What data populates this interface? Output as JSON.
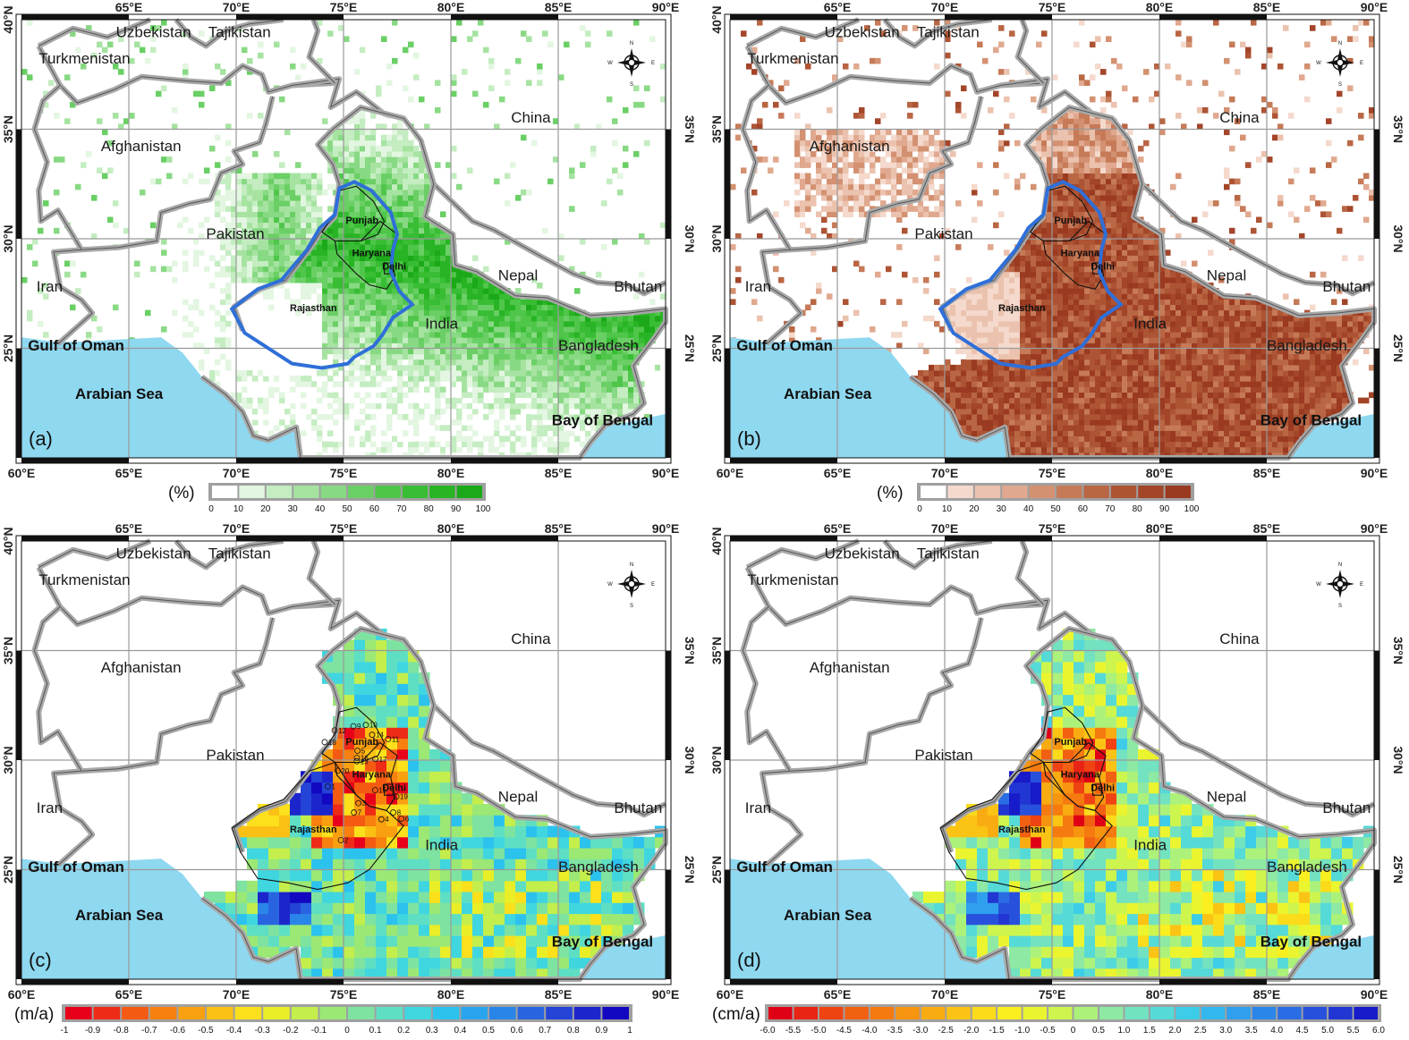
{
  "axes": {
    "lon_ticks": [
      "60°E",
      "65°E",
      "70°E",
      "75°E",
      "80°E",
      "85°E",
      "90°E"
    ],
    "lat_ticks": [
      "25°N",
      "30°N",
      "35°N",
      "40°N"
    ],
    "lon_range": [
      60,
      90
    ],
    "lat_range": [
      20,
      40
    ]
  },
  "places": {
    "uzbekistan": "Uzbekistan",
    "tajikistan": "Tajikistan",
    "turkmenistan": "Turkmenistan",
    "afghanistan": "Afghanistan",
    "china": "China",
    "pakistan": "Pakistan",
    "iran": "Iran",
    "nepal": "Nepal",
    "bhutan": "Bhutan",
    "india": "India",
    "bangladesh": "Bangladesh",
    "gulf_of_oman": "Gulf of Oman",
    "arabian_sea": "Arabian Sea",
    "bay_of_bengal": "Bay of Bengal"
  },
  "states": {
    "punjab": "Punjab",
    "haryana": "Haryana",
    "delhi": "Delhi",
    "rajasthan": "Rajasthan"
  },
  "compass": {
    "n": "N",
    "s": "S",
    "e": "E",
    "w": "W"
  },
  "panels": [
    {
      "id": "a",
      "label": "(a)",
      "legend_unit": "(%)",
      "legend_ticks": [
        "0",
        "10",
        "20",
        "30",
        "40",
        "50",
        "60",
        "70",
        "80",
        "90",
        "100"
      ],
      "colors": {
        "water": "#8ed8f0",
        "land": "#ffffff",
        "fill": "#2ebd2e",
        "outline": "#2f6fd8"
      }
    },
    {
      "id": "b",
      "label": "(b)",
      "legend_unit": "(%)",
      "legend_ticks": [
        "0",
        "10",
        "20",
        "30",
        "40",
        "50",
        "60",
        "70",
        "80",
        "90",
        "100"
      ],
      "colors": {
        "water": "#8ed8f0",
        "land": "#ffffff",
        "fill": "#a8452a",
        "outline": "#2f6fd8"
      }
    },
    {
      "id": "c",
      "label": "(c)",
      "legend_unit": "(m/a)",
      "legend_ticks": [
        "-1",
        "-0.9",
        "-0.8",
        "-0.7",
        "-0.6",
        "-0.5",
        "-0.4",
        "-0.3",
        "-0.2",
        "-0.1",
        "0",
        "0.1",
        "0.2",
        "0.3",
        "0.4",
        "0.5",
        "0.6",
        "0.7",
        "0.8",
        "0.9",
        "1"
      ],
      "colors": {
        "water": "#8ed8f0",
        "land": "#ffffff"
      }
    },
    {
      "id": "d",
      "label": "(d)",
      "legend_unit": "(cm/a)",
      "legend_ticks": [
        "-6.0",
        "-5.5",
        "-5.0",
        "-4.5",
        "-4.0",
        "-3.5",
        "-3.0",
        "-2.5",
        "-2.0",
        "-1.5",
        "-1.0",
        "-0.5",
        "0",
        "0.5",
        "1.0",
        "1.5",
        "2.0",
        "2.5",
        "3.0",
        "3.5",
        "4.0",
        "4.5",
        "5.0",
        "5.5",
        "6.0"
      ],
      "colors": {
        "water": "#8ed8f0",
        "land": "#ffffff"
      }
    }
  ],
  "sites": [
    "1",
    "2",
    "3",
    "4",
    "5",
    "6",
    "7",
    "8",
    "9",
    "10",
    "11",
    "12",
    "13",
    "14",
    "15",
    "16",
    "17",
    "18",
    "19",
    "20"
  ],
  "palettes": {
    "green": [
      "#ffffff",
      "#e3f6e1",
      "#c4edc1",
      "#a6e3a1",
      "#88d983",
      "#6acf65",
      "#4fc64a",
      "#38bd34",
      "#28b424",
      "#1ca919"
    ],
    "brown": [
      "#ffffff",
      "#f4d9cc",
      "#ebc2ae",
      "#e0a98f",
      "#d39171",
      "#c67a57",
      "#b96644",
      "#ad5434",
      "#a34529",
      "#9a3a21"
    ],
    "diverging_c": [
      "#e8001a",
      "#ee2b16",
      "#f45a12",
      "#f7800f",
      "#f9a010",
      "#fbc014",
      "#fbe01b",
      "#e9ee27",
      "#c3ee4b",
      "#9be875",
      "#7ee3a0",
      "#5edfc4",
      "#3fd6e0",
      "#2cc2ee",
      "#29a4ee",
      "#2a85e8",
      "#2964e0",
      "#2443d7",
      "#1c25cc",
      "#1208c1"
    ],
    "diverging_d": [
      "#e00016",
      "#e92415",
      "#ef4313",
      "#f26012",
      "#f57b10",
      "#f79410",
      "#f9ac12",
      "#fbc415",
      "#fbdb1a",
      "#fbef20",
      "#ebf52f",
      "#cdf54d",
      "#acf27a",
      "#8de9a3",
      "#72e2c1",
      "#55dad8",
      "#3dcde8",
      "#33b8ee",
      "#2f9fee",
      "#2c86ea",
      "#2a6ce4",
      "#2751dc",
      "#2136d3",
      "#171bc9"
    ]
  }
}
